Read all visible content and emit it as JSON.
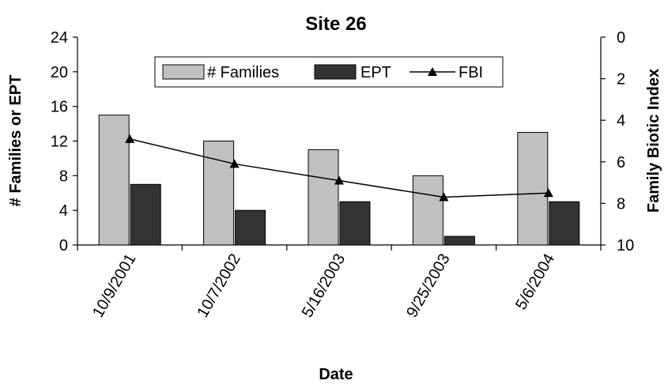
{
  "chart_data": {
    "type": "bar",
    "title": "Site 26",
    "xlabel": "Date",
    "ylabel": "# Families or EPT",
    "y2label": "Family Biotic Index",
    "categories": [
      "10/9/2001",
      "10/7/2002",
      "5/16/2003",
      "9/25/2003",
      "5/6/2004"
    ],
    "ylim": [
      0,
      24
    ],
    "yticks": [
      0,
      4,
      8,
      12,
      16,
      20,
      24
    ],
    "y2lim": [
      0,
      10
    ],
    "y2ticks": [
      0,
      2,
      4,
      6,
      8,
      10
    ],
    "y2_inverted": true,
    "grid": false,
    "legend_position": "top-center",
    "series": [
      {
        "name": "# Families",
        "type": "bar",
        "axis": "left",
        "color": "#c0c0c0",
        "values": [
          15,
          12,
          11,
          8,
          13
        ]
      },
      {
        "name": "EPT",
        "type": "bar",
        "axis": "left",
        "color": "#333333",
        "values": [
          7,
          4,
          5,
          1,
          5
        ]
      },
      {
        "name": "FBI",
        "type": "line",
        "axis": "right",
        "color": "#000000",
        "marker": "triangle",
        "values": [
          4.9,
          6.1,
          6.9,
          7.7,
          7.5
        ]
      }
    ]
  }
}
